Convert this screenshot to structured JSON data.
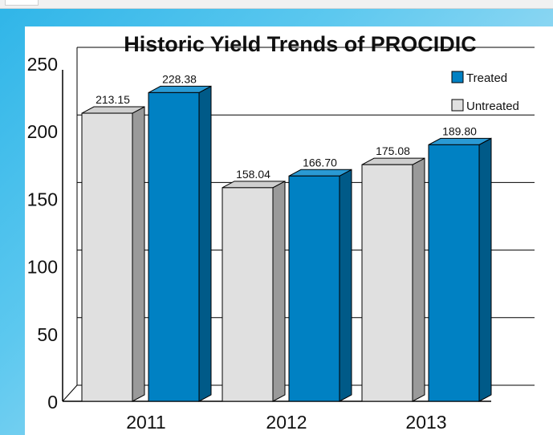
{
  "chart_data": {
    "type": "bar",
    "title": "Historic Yield Trends of PROCIDIC",
    "xlabel": "",
    "ylabel": "",
    "categories": [
      "2011",
      "2012",
      "2013"
    ],
    "series": [
      {
        "name": "Untreated",
        "values": [
          213.15,
          158.04,
          175.08
        ],
        "labels": [
          "213.15",
          "158.04",
          "175.08"
        ],
        "color": "#e0e0e0"
      },
      {
        "name": "Treated",
        "values": [
          228.38,
          166.7,
          189.8
        ],
        "labels": [
          "228.38",
          "166.70",
          "189.80"
        ],
        "color": "#0081c3"
      }
    ],
    "ylim": [
      0,
      250
    ],
    "yticks": [
      "0",
      "50",
      "100",
      "150",
      "200",
      "250"
    ],
    "grid": true,
    "legend": "top-right",
    "legend_order": [
      "Treated",
      "Untreated"
    ]
  }
}
